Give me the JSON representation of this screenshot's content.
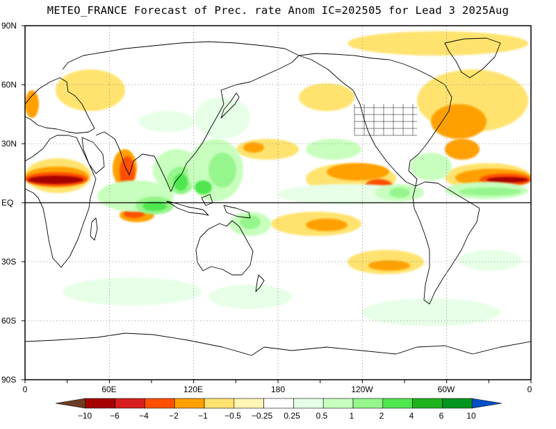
{
  "title": "METEO_FRANCE Forecast of Prec. rate Anom IC=202505 for Lead 3 2025Aug",
  "lat_labels": [
    "90N",
    "60N",
    "30N",
    "EQ",
    "30S",
    "60S",
    "90S"
  ],
  "lon_labels": [
    "0",
    "60E",
    "120E",
    "180",
    "120W",
    "60W",
    "0"
  ],
  "colorbar": {
    "labels": [
      "−10",
      "−6",
      "−4",
      "−2",
      "−1",
      "−0.5",
      "−0.25",
      "0.25",
      "0.5",
      "1",
      "2",
      "4",
      "6",
      "10"
    ],
    "colors": [
      "#6e3b23",
      "#a50000",
      "#d71e1e",
      "#ff5000",
      "#ffa000",
      "#ffe36e",
      "#fff5b4",
      "#ffffff",
      "#e6ffe6",
      "#c8ffbe",
      "#96f58c",
      "#50e650",
      "#1eb41e",
      "#00961e",
      "#0050c8"
    ]
  },
  "colors": {
    "dry_strong": "#a50000",
    "dry_mid": "#ff5000",
    "dry_light": "#ffa000",
    "dry_faint": "#ffe36e",
    "dry_pale": "#fff5b4",
    "wet_pale": "#e6ffe6",
    "wet_light": "#c8ffbe",
    "wet_mid": "#96f58c",
    "wet_strong": "#50e650",
    "wet_deep": "#1eb41e"
  }
}
